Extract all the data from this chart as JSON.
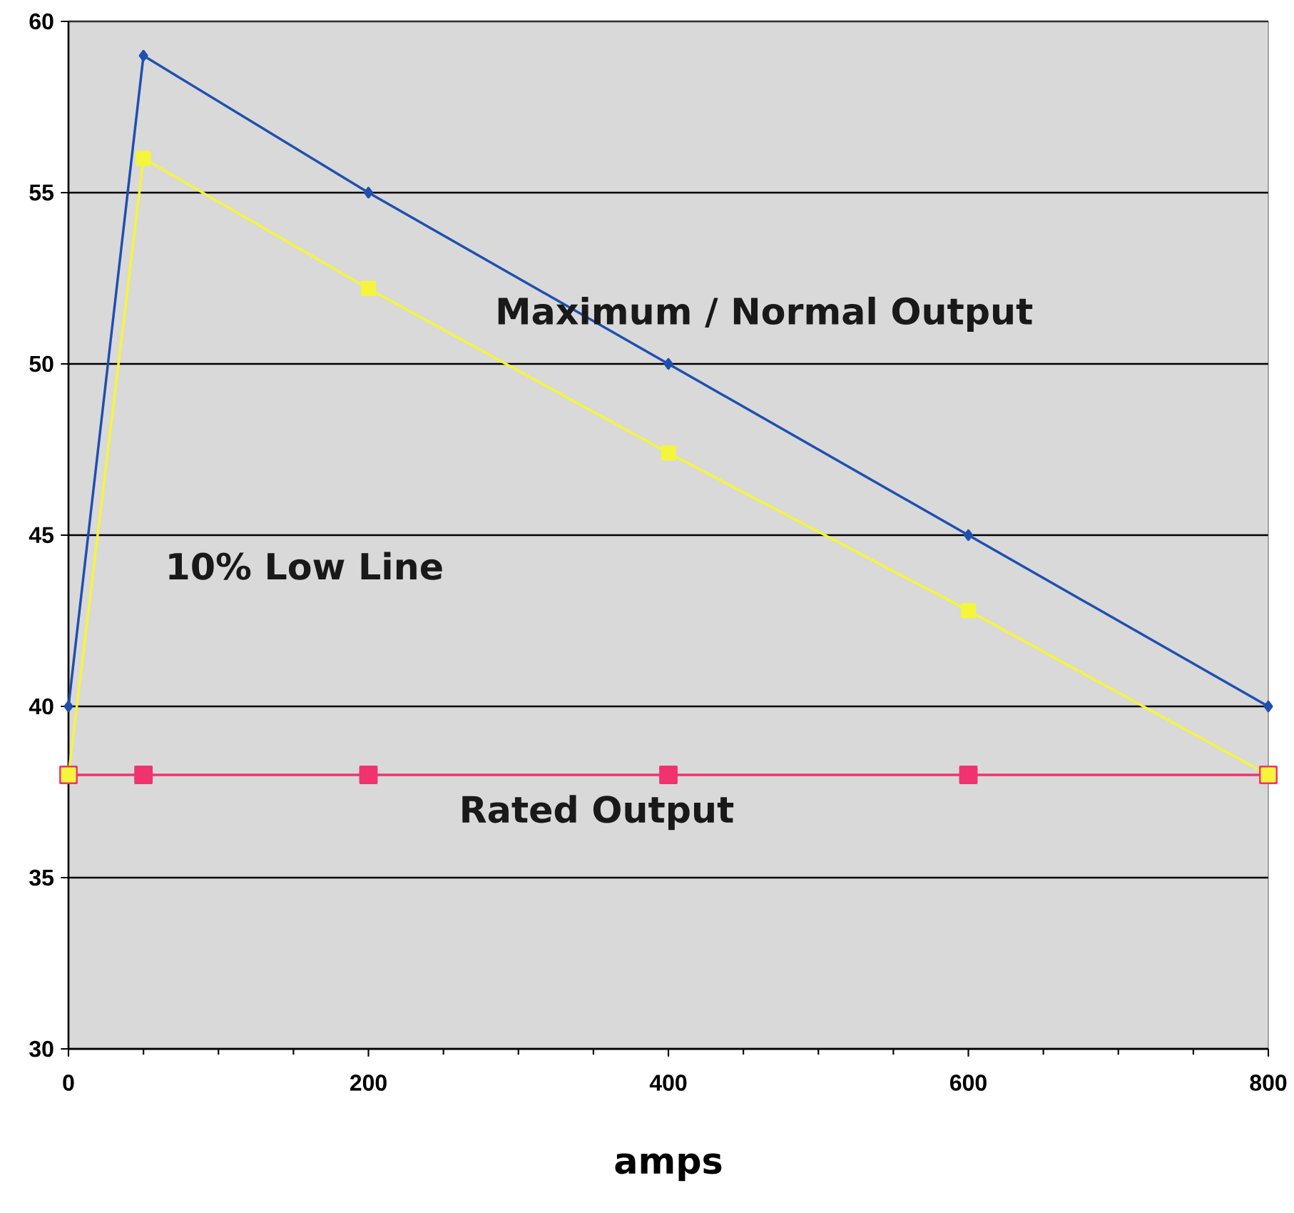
{
  "chart_data": {
    "type": "line",
    "xlabel": "amps",
    "xlim": [
      0,
      800
    ],
    "xticks": [
      0,
      200,
      400,
      600,
      800
    ],
    "ylim": [
      30,
      60
    ],
    "yticks": [
      30,
      35,
      40,
      45,
      50,
      55,
      60
    ],
    "grid": "y",
    "legend": false,
    "line_style": "solid",
    "series": [
      {
        "name": "Maximum / Normal Output",
        "color": "#1f4fb0",
        "marker": "diamond",
        "x": [
          0,
          50,
          200,
          400,
          600,
          800
        ],
        "values": [
          40,
          59,
          55,
          50,
          45,
          40
        ]
      },
      {
        "name": "10% Low Line",
        "color": "#f5f53c",
        "marker": "square",
        "x": [
          0,
          50,
          200,
          400,
          600,
          800
        ],
        "values": [
          38,
          56,
          52.2,
          47.4,
          42.8,
          38
        ]
      },
      {
        "name": "Rated Output",
        "color": "#f0336e",
        "marker": "square",
        "x": [
          0,
          50,
          200,
          400,
          600,
          800
        ],
        "values": [
          38,
          38,
          38,
          38,
          38,
          38
        ]
      }
    ]
  }
}
